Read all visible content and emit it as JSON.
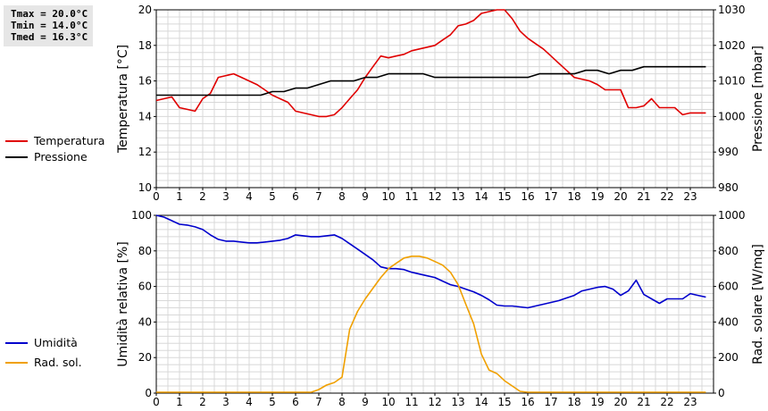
{
  "stats": {
    "tmax": "Tmax = 20.0°C",
    "tmin": "Tmin = 14.0°C",
    "tmed": "Tmed = 16.3°C"
  },
  "chart_data": [
    {
      "type": "line",
      "x_ticks": [
        "0",
        "1",
        "2",
        "3",
        "4",
        "5",
        "6",
        "7",
        "8",
        "9",
        "10",
        "11",
        "12",
        "13",
        "14",
        "15",
        "16",
        "17",
        "18",
        "19",
        "20",
        "21",
        "22",
        "23"
      ],
      "xlim": [
        0,
        24
      ],
      "ylabel_left": "Temperatura [°C]",
      "ylabel_right": "Pressione [mbar]",
      "ylim_left": [
        10,
        20
      ],
      "ylim_right": [
        980,
        1030
      ],
      "y_ticks_left": [
        "10",
        "12",
        "14",
        "16",
        "18",
        "20"
      ],
      "y_ticks_right": [
        "980",
        "990",
        "1000",
        "1010",
        "1020",
        "1030"
      ],
      "grid": true,
      "legend": "left",
      "series": [
        {
          "name": "Temperatura",
          "color": "#e00000",
          "axis": "left",
          "x": [
            0,
            0.33,
            0.67,
            1,
            1.33,
            1.67,
            2,
            2.33,
            2.67,
            3,
            3.33,
            3.67,
            4,
            4.33,
            4.67,
            5,
            5.33,
            5.67,
            6,
            6.33,
            6.67,
            7,
            7.33,
            7.67,
            8,
            8.33,
            8.67,
            9,
            9.33,
            9.67,
            10,
            10.33,
            10.67,
            11,
            11.33,
            11.67,
            12,
            12.33,
            12.67,
            13,
            13.33,
            13.67,
            14,
            14.33,
            14.67,
            15,
            15.33,
            15.67,
            16,
            16.33,
            16.67,
            17,
            17.33,
            17.67,
            18,
            18.33,
            18.67,
            19,
            19.33,
            19.67,
            20,
            20.33,
            20.67,
            21,
            21.33,
            21.67,
            22,
            22.33,
            22.67,
            23,
            23.33,
            23.67
          ],
          "y": [
            14.9,
            15.0,
            15.1,
            14.5,
            14.4,
            14.3,
            15.0,
            15.3,
            16.2,
            16.3,
            16.4,
            16.2,
            16.0,
            15.8,
            15.5,
            15.2,
            15.0,
            14.8,
            14.3,
            14.2,
            14.1,
            14.0,
            14.0,
            14.1,
            14.5,
            15.0,
            15.5,
            16.2,
            16.8,
            17.4,
            17.3,
            17.4,
            17.5,
            17.7,
            17.8,
            17.9,
            18.0,
            18.3,
            18.6,
            19.1,
            19.2,
            19.4,
            19.8,
            19.9,
            20.0,
            20.0,
            19.5,
            18.8,
            18.4,
            18.1,
            17.8,
            17.4,
            17.0,
            16.6,
            16.2,
            16.1,
            16.0,
            15.8,
            15.5,
            15.5,
            15.5,
            14.5,
            14.5,
            14.6,
            15.0,
            14.5,
            14.5,
            14.5,
            14.1,
            14.2,
            14.2,
            14.2
          ]
        },
        {
          "name": "Pressione",
          "color": "#000000",
          "axis": "right",
          "x": [
            0,
            0.5,
            1,
            1.5,
            2,
            2.5,
            3,
            3.5,
            4,
            4.5,
            5,
            5.5,
            6,
            6.5,
            7,
            7.5,
            8,
            8.5,
            9,
            9.5,
            10,
            10.5,
            11,
            11.5,
            12,
            12.5,
            13,
            13.5,
            14,
            14.5,
            15,
            15.5,
            16,
            16.5,
            17,
            17.5,
            18,
            18.5,
            19,
            19.5,
            20,
            20.5,
            21,
            21.5,
            22,
            22.5,
            23,
            23.67
          ],
          "y": [
            1006,
            1006,
            1006,
            1006,
            1006,
            1006,
            1006,
            1006,
            1006,
            1006,
            1007,
            1007,
            1008,
            1008,
            1009,
            1010,
            1010,
            1010,
            1011,
            1011,
            1012,
            1012,
            1012,
            1012,
            1011,
            1011,
            1011,
            1011,
            1011,
            1011,
            1011,
            1011,
            1011,
            1012,
            1012,
            1012,
            1012,
            1013,
            1013,
            1012,
            1013,
            1013,
            1014,
            1014,
            1014,
            1014,
            1014,
            1014
          ]
        }
      ]
    },
    {
      "type": "line",
      "x_ticks": [
        "0",
        "1",
        "2",
        "3",
        "4",
        "5",
        "6",
        "7",
        "8",
        "9",
        "10",
        "11",
        "12",
        "13",
        "14",
        "15",
        "16",
        "17",
        "18",
        "19",
        "20",
        "21",
        "22",
        "23"
      ],
      "xlim": [
        0,
        24
      ],
      "ylabel_left": "Umidità relativa [%]",
      "ylabel_right": "Rad. solare [W/mq]",
      "ylim_left": [
        0,
        100
      ],
      "ylim_right": [
        0,
        1000
      ],
      "y_ticks_left": [
        "0",
        "20",
        "40",
        "60",
        "80",
        "100"
      ],
      "y_ticks_right": [
        "0",
        "200",
        "400",
        "600",
        "800",
        "1000"
      ],
      "grid": true,
      "legend": "left",
      "series": [
        {
          "name": "Umidità",
          "color": "#0000cc",
          "axis": "left",
          "x": [
            0,
            0.33,
            0.67,
            1,
            1.33,
            1.67,
            2,
            2.33,
            2.67,
            3,
            3.33,
            3.67,
            4,
            4.33,
            4.67,
            5,
            5.33,
            5.67,
            6,
            6.33,
            6.67,
            7,
            7.33,
            7.67,
            8,
            8.33,
            8.67,
            9,
            9.33,
            9.67,
            10,
            10.33,
            10.67,
            11,
            11.33,
            11.67,
            12,
            12.33,
            12.67,
            13,
            13.33,
            13.67,
            14,
            14.33,
            14.67,
            15,
            15.33,
            15.67,
            16,
            16.33,
            16.67,
            17,
            17.33,
            17.67,
            18,
            18.33,
            18.67,
            19,
            19.33,
            19.67,
            20,
            20.33,
            20.67,
            21,
            21.33,
            21.67,
            22,
            22.33,
            22.67,
            23,
            23.33,
            23.67
          ],
          "y": [
            100,
            99,
            97,
            95,
            94.5,
            93.5,
            92,
            89,
            86.5,
            85.5,
            85.5,
            85,
            84.5,
            84.5,
            85,
            85.5,
            86,
            87,
            89,
            88.5,
            88,
            88,
            88.5,
            89,
            87,
            84,
            81,
            78,
            75,
            71,
            70,
            70,
            69.5,
            68,
            67,
            66,
            65,
            63,
            61,
            60,
            58.5,
            57,
            55,
            52.5,
            49.5,
            49,
            49,
            48.5,
            48,
            49,
            50,
            51,
            52,
            53.5,
            55,
            57.5,
            58.5,
            59.5,
            60,
            58.5,
            55,
            57.5,
            63.5,
            55.5,
            53,
            50.5,
            53,
            53,
            53,
            56,
            55,
            54
          ]
        },
        {
          "name": "Rad. sol.",
          "color": "#f0a000",
          "axis": "right",
          "x": [
            0,
            0.33,
            0.67,
            1,
            1.33,
            1.67,
            2,
            2.33,
            2.67,
            3,
            3.33,
            3.67,
            4,
            4.33,
            4.67,
            5,
            5.33,
            5.67,
            6,
            6.33,
            6.67,
            7,
            7.33,
            7.67,
            8,
            8.33,
            8.67,
            9,
            9.33,
            9.67,
            10,
            10.33,
            10.67,
            11,
            11.33,
            11.67,
            12,
            12.33,
            12.67,
            13,
            13.33,
            13.67,
            14,
            14.33,
            14.67,
            15,
            15.33,
            15.67,
            16,
            16.33,
            16.67,
            17,
            17.33,
            17.67,
            18,
            18.33,
            18.67,
            19,
            19.33,
            19.67,
            20,
            20.33,
            20.67,
            21,
            21.33,
            21.67,
            22,
            22.33,
            22.67,
            23,
            23.33,
            23.67
          ],
          "y": [
            5,
            5,
            5,
            5,
            5,
            5,
            5,
            5,
            5,
            5,
            5,
            5,
            5,
            5,
            5,
            5,
            5,
            5,
            5,
            5,
            5,
            20,
            45,
            60,
            90,
            360,
            460,
            530,
            590,
            650,
            700,
            730,
            760,
            770,
            770,
            760,
            740,
            720,
            680,
            610,
            500,
            390,
            220,
            130,
            110,
            70,
            40,
            10,
            5,
            5,
            5,
            5,
            5,
            5,
            5,
            5,
            5,
            5,
            5,
            5,
            5,
            5,
            5,
            5,
            5,
            5,
            5,
            5,
            5,
            5,
            5,
            5
          ]
        }
      ]
    }
  ]
}
